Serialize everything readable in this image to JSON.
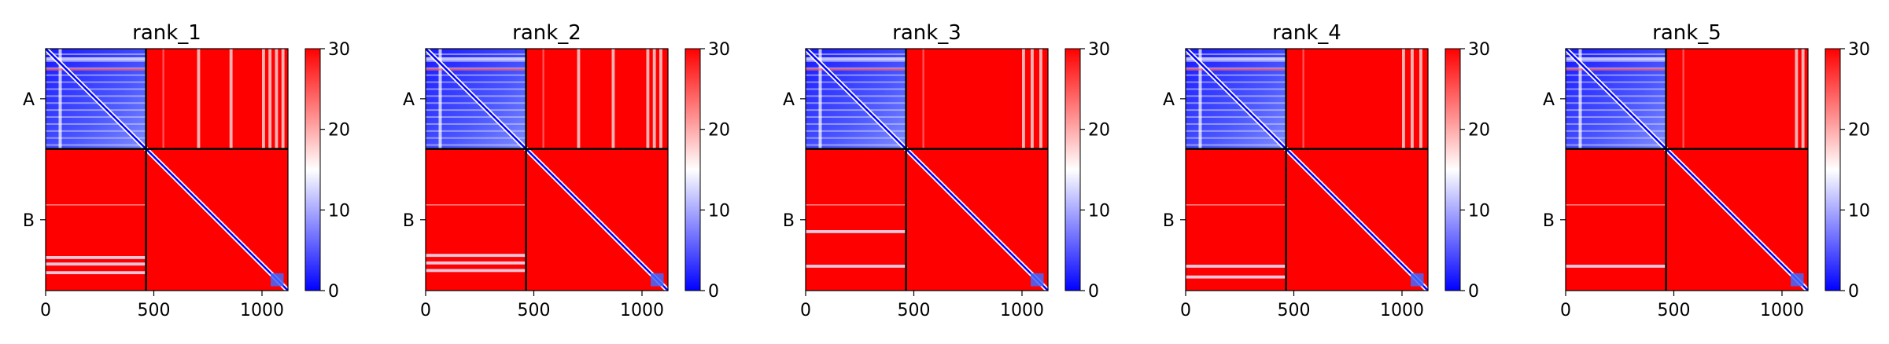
{
  "colors": {
    "high": "#ff0000",
    "mid": "#ffffff",
    "low": "#0000ff",
    "divider": "#000000"
  },
  "chart_data": [
    {
      "type": "heatmap",
      "title": "rank_1",
      "xlabel": "",
      "ylabel": "",
      "x_ticks": [
        0,
        500,
        1000
      ],
      "xlim": [
        0,
        1120
      ],
      "y_categories": [
        "A",
        "B"
      ],
      "chain_break": 464,
      "colorbar": {
        "min": 0,
        "max": 30,
        "ticks": [
          0,
          10,
          20,
          30
        ]
      },
      "features": {
        "a_columns": [
          700,
          850,
          1000,
          1030,
          1060,
          1090
        ],
        "b_rows": [
          960,
          990,
          1030
        ]
      }
    },
    {
      "type": "heatmap",
      "title": "rank_2",
      "xlabel": "",
      "ylabel": "",
      "x_ticks": [
        0,
        500,
        1000
      ],
      "xlim": [
        0,
        1120
      ],
      "y_categories": [
        "A",
        "B"
      ],
      "chain_break": 464,
      "colorbar": {
        "min": 0,
        "max": 30,
        "ticks": [
          0,
          10,
          20,
          30
        ]
      },
      "features": {
        "a_columns": [
          700,
          860,
          1020,
          1050,
          1080
        ],
        "b_rows": [
          950,
          985,
          1020
        ]
      }
    },
    {
      "type": "heatmap",
      "title": "rank_3",
      "xlabel": "",
      "ylabel": "",
      "x_ticks": [
        0,
        500,
        1000
      ],
      "xlim": [
        0,
        1120
      ],
      "y_categories": [
        "A",
        "B"
      ],
      "chain_break": 464,
      "colorbar": {
        "min": 0,
        "max": 30,
        "ticks": [
          0,
          10,
          20,
          30
        ]
      },
      "features": {
        "a_columns": [
          1000,
          1040,
          1080
        ],
        "b_rows": [
          840,
          1000
        ]
      }
    },
    {
      "type": "heatmap",
      "title": "rank_4",
      "xlabel": "",
      "ylabel": "",
      "x_ticks": [
        0,
        500,
        1000
      ],
      "xlim": [
        0,
        1120
      ],
      "y_categories": [
        "A",
        "B"
      ],
      "chain_break": 464,
      "colorbar": {
        "min": 0,
        "max": 30,
        "ticks": [
          0,
          10,
          20,
          30
        ]
      },
      "features": {
        "a_columns": [
          1000,
          1040,
          1080
        ],
        "b_rows": [
          1000,
          1050
        ]
      }
    },
    {
      "type": "heatmap",
      "title": "rank_5",
      "xlabel": "",
      "ylabel": "",
      "x_ticks": [
        0,
        500,
        1000
      ],
      "xlim": [
        0,
        1120
      ],
      "y_categories": [
        "A",
        "B"
      ],
      "chain_break": 464,
      "colorbar": {
        "min": 0,
        "max": 30,
        "ticks": [
          0,
          10,
          20,
          30
        ]
      },
      "features": {
        "a_columns": [
          1060,
          1090
        ],
        "b_rows": [
          1000
        ]
      }
    }
  ]
}
